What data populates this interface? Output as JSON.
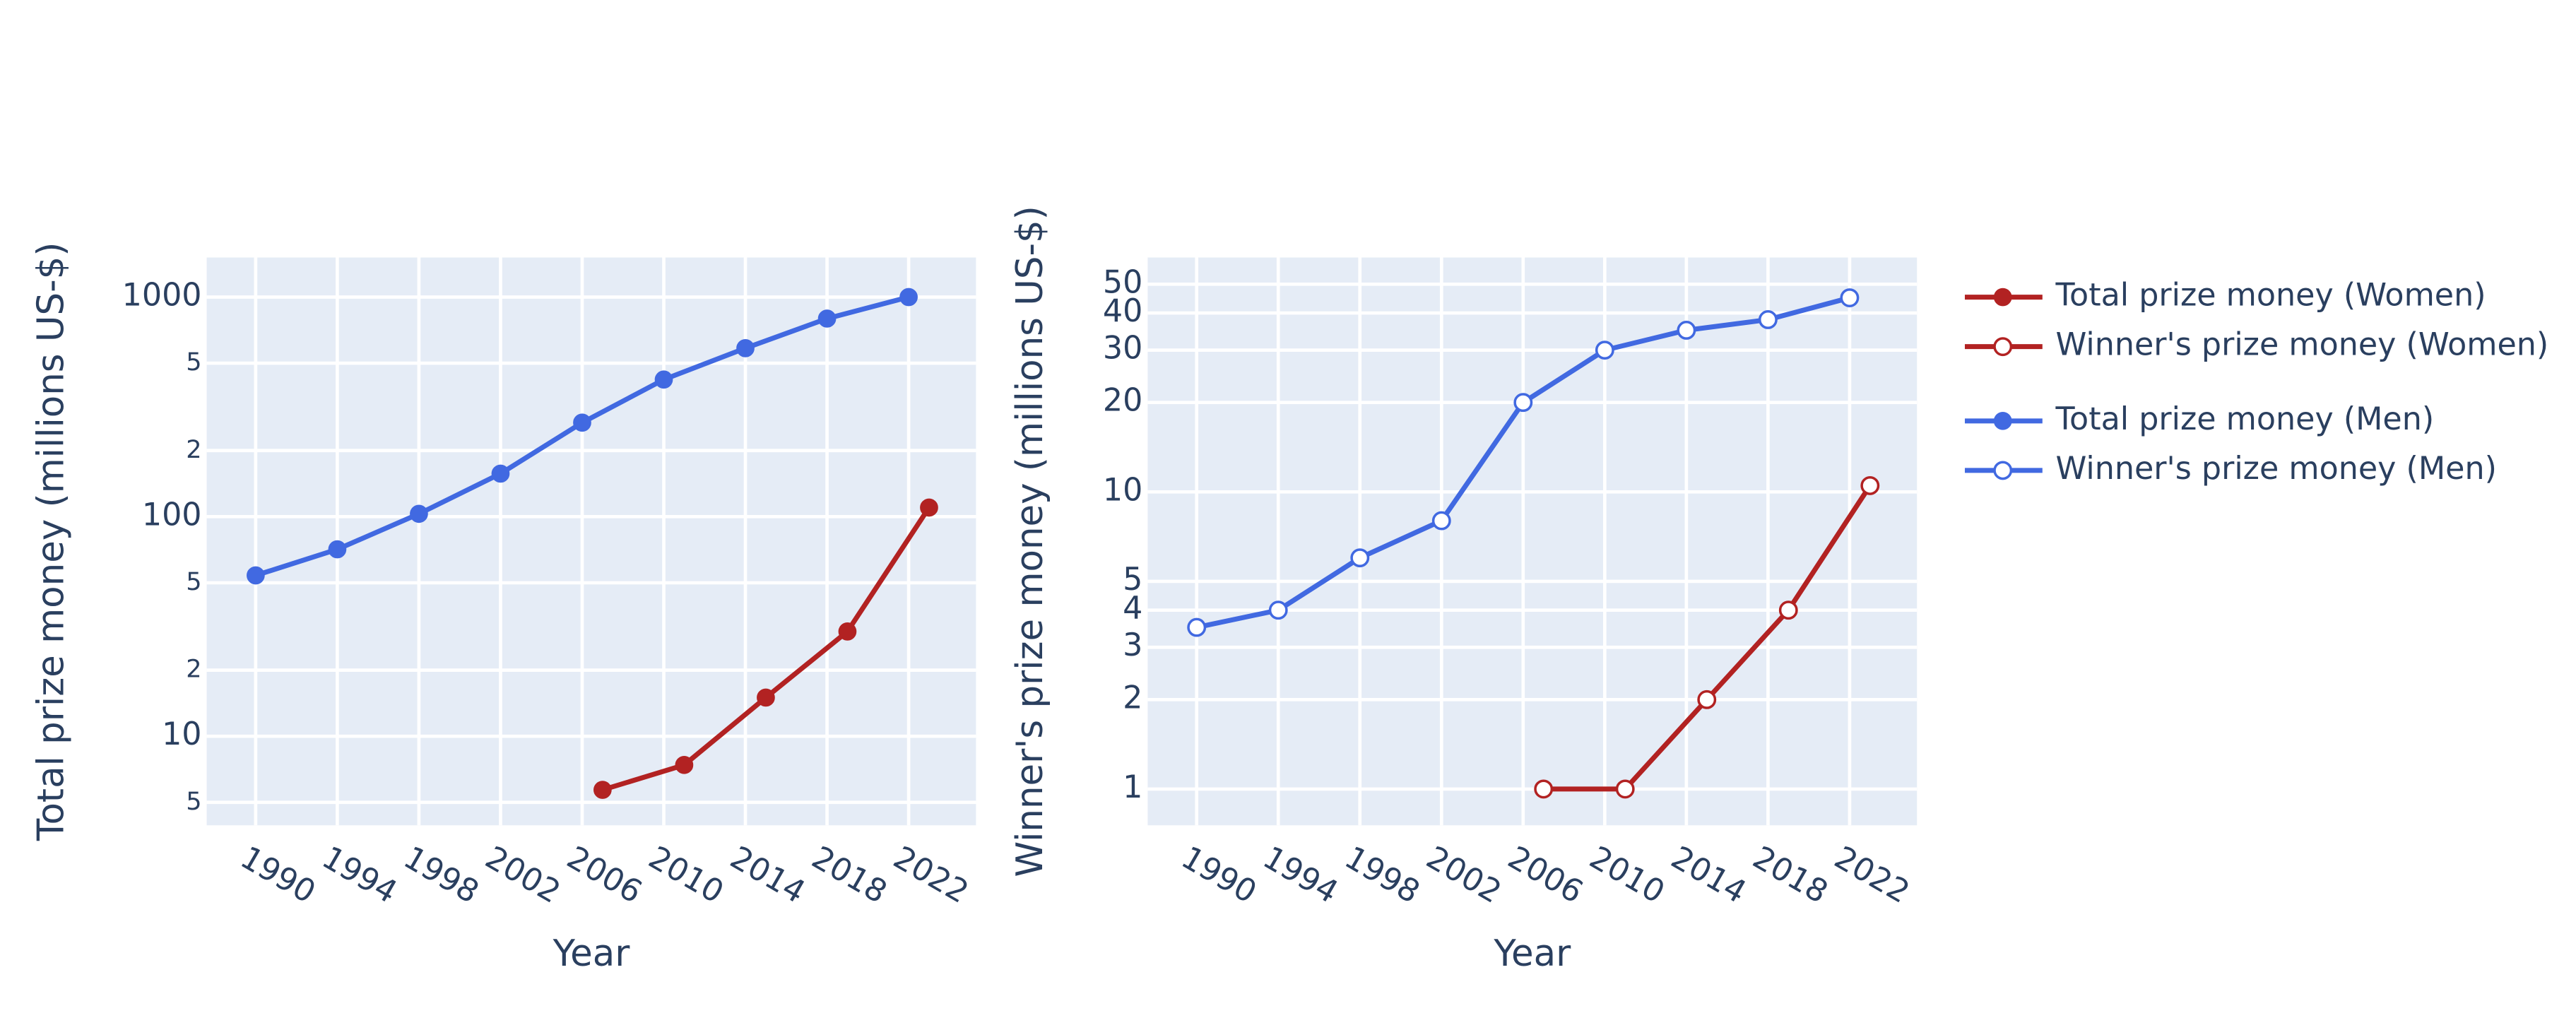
{
  "chart_data": [
    {
      "type": "line",
      "y_label": "Total prize money (millions US-$)",
      "x_label": "Year",
      "log_y": true,
      "grid": true,
      "marker": "filled",
      "xlim": [
        1987.6,
        2025.3
      ],
      "xticks": [
        1990,
        1994,
        1998,
        2002,
        2006,
        2010,
        2014,
        2018,
        2022
      ],
      "ylim": [
        3.93,
        1514
      ],
      "yticks": [
        5,
        10,
        {
          "value": 20,
          "label": "2"
        },
        {
          "value": 50,
          "label": "5"
        },
        100,
        {
          "value": 200,
          "label": "2"
        },
        {
          "value": 500,
          "label": "5"
        },
        1000
      ],
      "series": [
        {
          "name": "Total prize money (Women)",
          "color": "#b22222",
          "x": [
            2007,
            2011,
            2015,
            2019,
            2023
          ],
          "values": [
            5.7,
            7.4,
            15,
            30,
            110
          ]
        },
        {
          "name": "Total prize money (Men)",
          "color": "#4169e1",
          "x": [
            1990,
            1994,
            1998,
            2002,
            2006,
            2010,
            2014,
            2018,
            2022
          ],
          "values": [
            54,
            71,
            103,
            157,
            268,
            421,
            585,
            798,
            1000
          ]
        }
      ]
    },
    {
      "type": "line",
      "y_label": "Winner's prize money (millions US-$)",
      "x_label": "Year",
      "log_y": true,
      "grid": true,
      "marker": "open",
      "xlim": [
        1987.6,
        2025.3
      ],
      "xticks": [
        1990,
        1994,
        1998,
        2002,
        2006,
        2010,
        2014,
        2018,
        2022
      ],
      "ylim": [
        0.755,
        61.5
      ],
      "yticks": [
        1,
        2,
        3,
        4,
        5,
        10,
        20,
        30,
        40,
        50
      ],
      "series": [
        {
          "name": "Winner's prize money (Women)",
          "color": "#b22222",
          "x": [
            2007,
            2011,
            2015,
            2019,
            2023
          ],
          "values": [
            1,
            1,
            2,
            4,
            10.5
          ]
        },
        {
          "name": "Winner's prize money (Men)",
          "color": "#4169e1",
          "x": [
            1990,
            1994,
            1998,
            2002,
            2006,
            2010,
            2014,
            2018,
            2022
          ],
          "values": [
            3.5,
            4,
            6,
            8,
            20,
            30,
            35,
            38,
            45
          ]
        }
      ]
    }
  ]
}
